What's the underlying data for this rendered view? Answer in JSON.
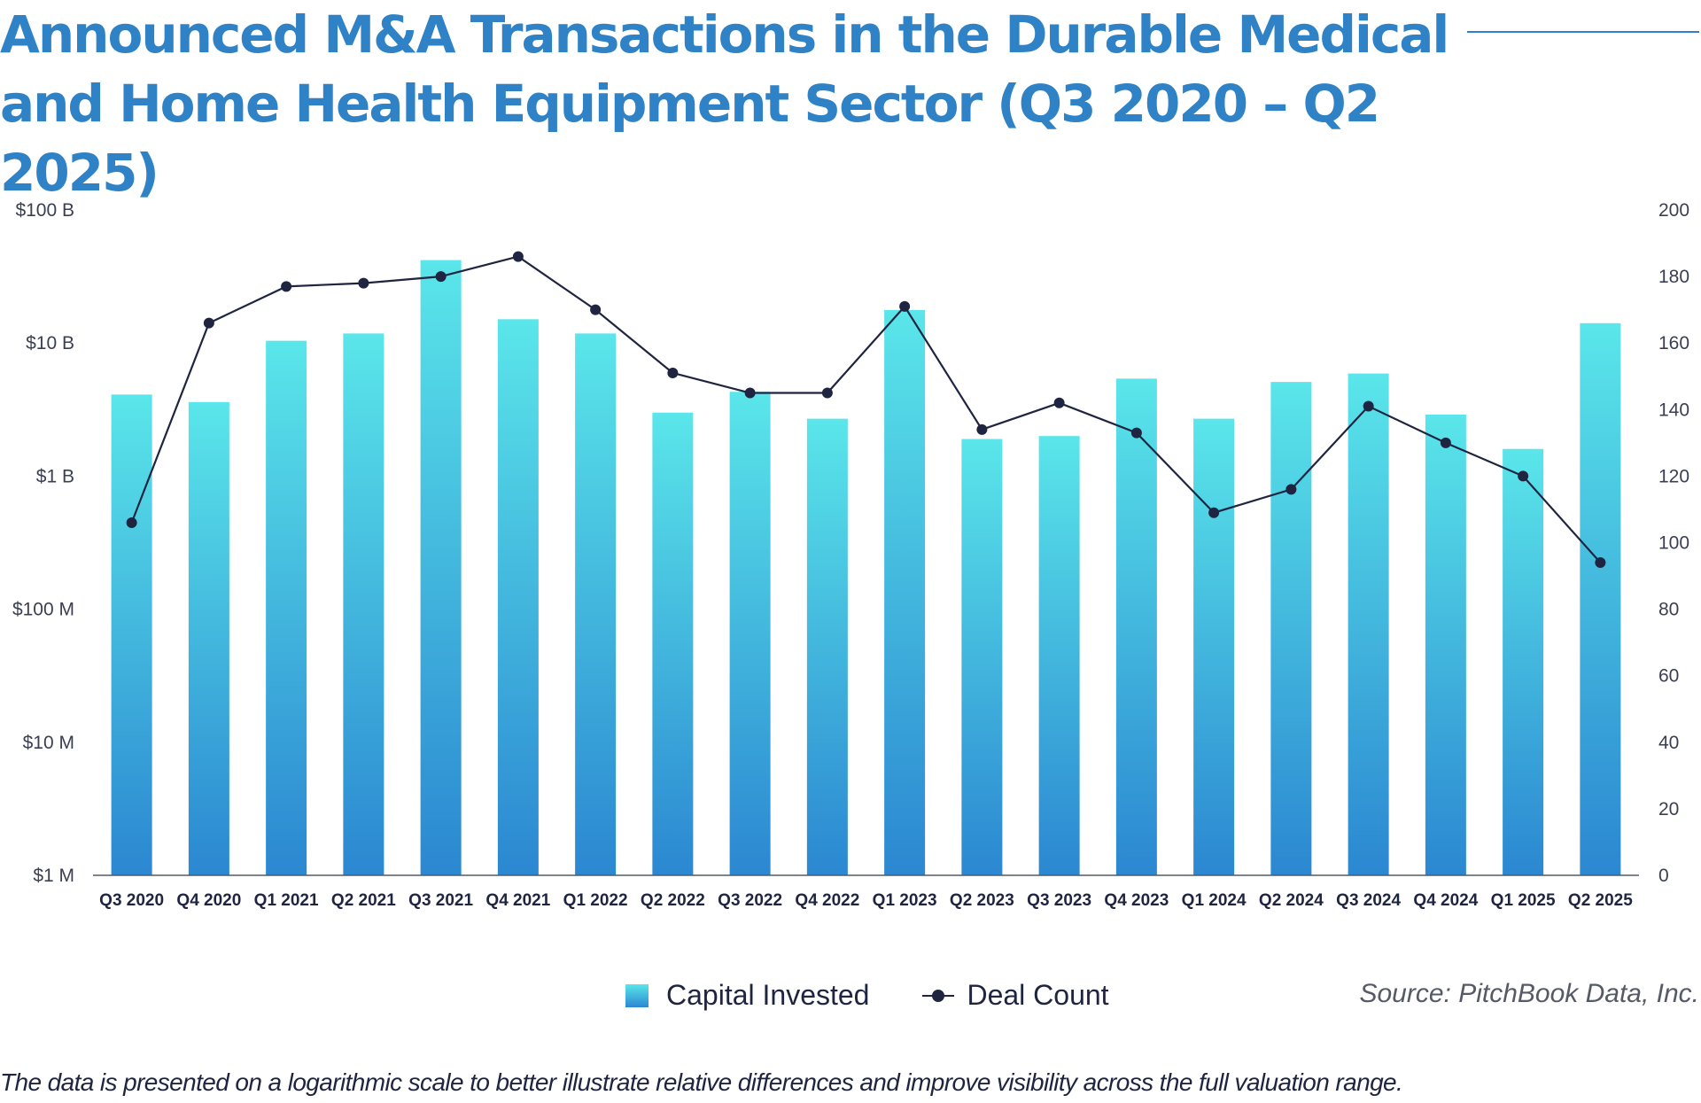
{
  "header": {
    "title": "Announced M&A Transactions in the Durable Medical and Home Health Equipment Sector (Q3 2020 – Q2 2025)"
  },
  "colors": {
    "title": "#2E82C5",
    "bar_top": "#5AE6EA",
    "bar_bottom": "#2B87D1",
    "line": "#1F2540",
    "axis": "#555a66"
  },
  "chart_data": {
    "type": "bar",
    "title": "Announced M&A Transactions in the Durable Medical and Home Health Equipment Sector (Q3 2020 – Q2 2025)",
    "xlabel": "",
    "ylabel": "Capital Invested",
    "y2label": "Deal Count",
    "yscale": "log",
    "ylim": [
      1000000,
      100000000000
    ],
    "y2lim": [
      0,
      200
    ],
    "grid": false,
    "legend_position": "bottom-center",
    "categories": [
      "Q3 2020",
      "Q4 2020",
      "Q1 2021",
      "Q2 2021",
      "Q3 2021",
      "Q4 2021",
      "Q1 2022",
      "Q2 2022",
      "Q3 2022",
      "Q4 2022",
      "Q1 2023",
      "Q2 2023",
      "Q3 2023",
      "Q4 2023",
      "Q1 2024",
      "Q2 2024",
      "Q3 2024",
      "Q4 2024",
      "Q1 2025",
      "Q2 2025"
    ],
    "y_ticks": [
      {
        "value": 1000000,
        "label": "$1 M"
      },
      {
        "value": 10000000,
        "label": "$10 M"
      },
      {
        "value": 100000000,
        "label": "$100 M"
      },
      {
        "value": 1000000000,
        "label": "$1 B"
      },
      {
        "value": 10000000000,
        "label": "$10 B"
      },
      {
        "value": 100000000000,
        "label": "$100 B"
      }
    ],
    "y2_ticks": [
      0,
      20,
      40,
      60,
      80,
      100,
      120,
      140,
      160,
      180,
      200
    ],
    "series": [
      {
        "name": "Capital Invested",
        "type": "bar",
        "axis": "left",
        "values": [
          4100000000,
          3600000000,
          10400000000,
          11800000000,
          42000000000,
          15100000000,
          11800000000,
          3000000000,
          4300000000,
          2700000000,
          17700000000,
          1900000000,
          2000000000,
          5400000000,
          2700000000,
          5100000000,
          5900000000,
          2900000000,
          1600000000,
          14100000000
        ]
      },
      {
        "name": "Deal Count",
        "type": "line",
        "axis": "right",
        "values": [
          106,
          166,
          177,
          178,
          180,
          186,
          170,
          151,
          145,
          145,
          171,
          134,
          142,
          133,
          109,
          116,
          141,
          130,
          120,
          94
        ]
      }
    ]
  },
  "legend": {
    "items": [
      {
        "label": "Capital Invested",
        "icon": "gradient-square-icon"
      },
      {
        "label": "Deal Count",
        "icon": "line-dot-icon"
      }
    ]
  },
  "source": "Source: PitchBook Data, Inc.",
  "footnote": "The data is presented on a logarithmic scale to better illustrate relative differences and improve visibility across the full valuation range."
}
